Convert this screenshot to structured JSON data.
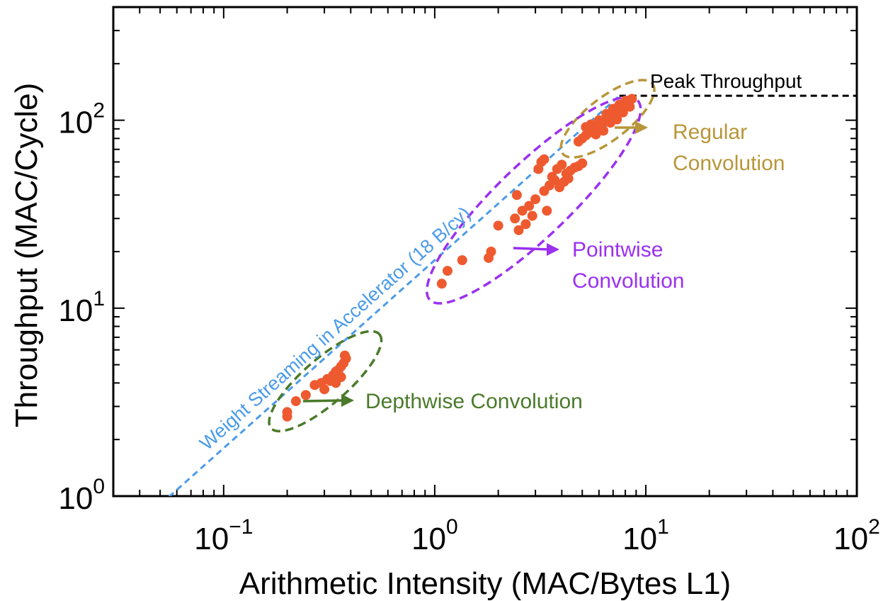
{
  "chart_data": {
    "type": "scatter",
    "xscale": "log",
    "yscale": "log",
    "xlim": [
      0.03,
      100
    ],
    "ylim": [
      1,
      400
    ],
    "xlabel": "Arithmetic Intensity (MAC/Bytes L1)",
    "ylabel": "Throughput (MAC/Cycle)",
    "x_ticks": [
      {
        "value": 0.1,
        "base": "10",
        "exp": "−1"
      },
      {
        "value": 1,
        "base": "10",
        "exp": "0"
      },
      {
        "value": 10,
        "base": "10",
        "exp": "1"
      },
      {
        "value": 100,
        "base": "10",
        "exp": "2"
      }
    ],
    "y_ticks": [
      {
        "value": 1,
        "base": "10",
        "exp": "0"
      },
      {
        "value": 10,
        "base": "10",
        "exp": "1"
      },
      {
        "value": 100,
        "base": "10",
        "exp": "2"
      }
    ],
    "peak_throughput": 135,
    "roofline": {
      "label": "Weight Streaming in Accelerator (18 B/cy)",
      "slope": 18,
      "color": "#4b9be8"
    },
    "peak_label": "Peak Throughput",
    "point_color": "#ee5a2f",
    "groups": [
      {
        "name": "Regular Convolution",
        "label_lines": [
          "Regular",
          "Convolution"
        ],
        "color": "#b8963a",
        "points": [
          [
            4.8,
            77
          ],
          [
            5.0,
            80
          ],
          [
            5.2,
            83
          ],
          [
            5.4,
            86
          ],
          [
            5.6,
            88
          ],
          [
            5.8,
            90
          ],
          [
            6.0,
            92
          ],
          [
            6.2,
            95
          ],
          [
            6.4,
            98
          ],
          [
            6.6,
            101
          ],
          [
            6.8,
            104
          ],
          [
            7.0,
            107
          ],
          [
            7.2,
            110
          ],
          [
            7.4,
            113
          ],
          [
            7.6,
            116
          ],
          [
            7.8,
            119
          ],
          [
            8.0,
            122
          ],
          [
            8.3,
            126
          ],
          [
            8.6,
            130
          ],
          [
            5.2,
            92
          ],
          [
            5.5,
            95
          ],
          [
            6.0,
            100
          ],
          [
            6.5,
            108
          ],
          [
            7.0,
            115
          ],
          [
            7.5,
            121
          ],
          [
            8.0,
            127
          ],
          [
            6.8,
            97
          ],
          [
            7.3,
            101
          ],
          [
            7.8,
            110
          ],
          [
            8.4,
            118
          ],
          [
            5.8,
            84
          ],
          [
            6.3,
            88
          ]
        ]
      },
      {
        "name": "Pointwise Convolution",
        "label_lines": [
          "Pointwise",
          "Convolution"
        ],
        "color": "#9b30f0",
        "points": [
          [
            1.08,
            13.5
          ],
          [
            1.15,
            15.8
          ],
          [
            1.35,
            18.0
          ],
          [
            1.8,
            18.5
          ],
          [
            1.85,
            20.0
          ],
          [
            2.0,
            27.5
          ],
          [
            2.4,
            30
          ],
          [
            2.45,
            40
          ],
          [
            2.5,
            26
          ],
          [
            2.6,
            33
          ],
          [
            2.7,
            28
          ],
          [
            2.8,
            35
          ],
          [
            2.9,
            31
          ],
          [
            3.0,
            38
          ],
          [
            3.1,
            55
          ],
          [
            3.2,
            60
          ],
          [
            3.3,
            62
          ],
          [
            3.4,
            33
          ],
          [
            3.5,
            45
          ],
          [
            3.6,
            50
          ],
          [
            3.7,
            48
          ],
          [
            3.8,
            55
          ],
          [
            4.0,
            58
          ],
          [
            4.2,
            52
          ],
          [
            4.4,
            54
          ],
          [
            4.6,
            56
          ],
          [
            4.8,
            57
          ],
          [
            5.0,
            59
          ],
          [
            4.1,
            47
          ],
          [
            4.3,
            49
          ],
          [
            3.9,
            44
          ],
          [
            3.3,
            42
          ]
        ]
      },
      {
        "name": "Depthwise Convolution",
        "label_lines": [
          "Depthwise Convolution"
        ],
        "color": "#4a7a2a",
        "points": [
          [
            0.2,
            2.65
          ],
          [
            0.2,
            2.8
          ],
          [
            0.22,
            3.2
          ],
          [
            0.245,
            3.45
          ],
          [
            0.27,
            3.9
          ],
          [
            0.29,
            4.0
          ],
          [
            0.31,
            4.2
          ],
          [
            0.32,
            4.1
          ],
          [
            0.33,
            4.4
          ],
          [
            0.34,
            4.6
          ],
          [
            0.35,
            4.7
          ],
          [
            0.36,
            4.9
          ],
          [
            0.37,
            5.1
          ],
          [
            0.38,
            5.4
          ],
          [
            0.375,
            5.6
          ],
          [
            0.3,
            3.7
          ],
          [
            0.34,
            4.0
          ],
          [
            0.36,
            4.3
          ]
        ]
      }
    ]
  }
}
